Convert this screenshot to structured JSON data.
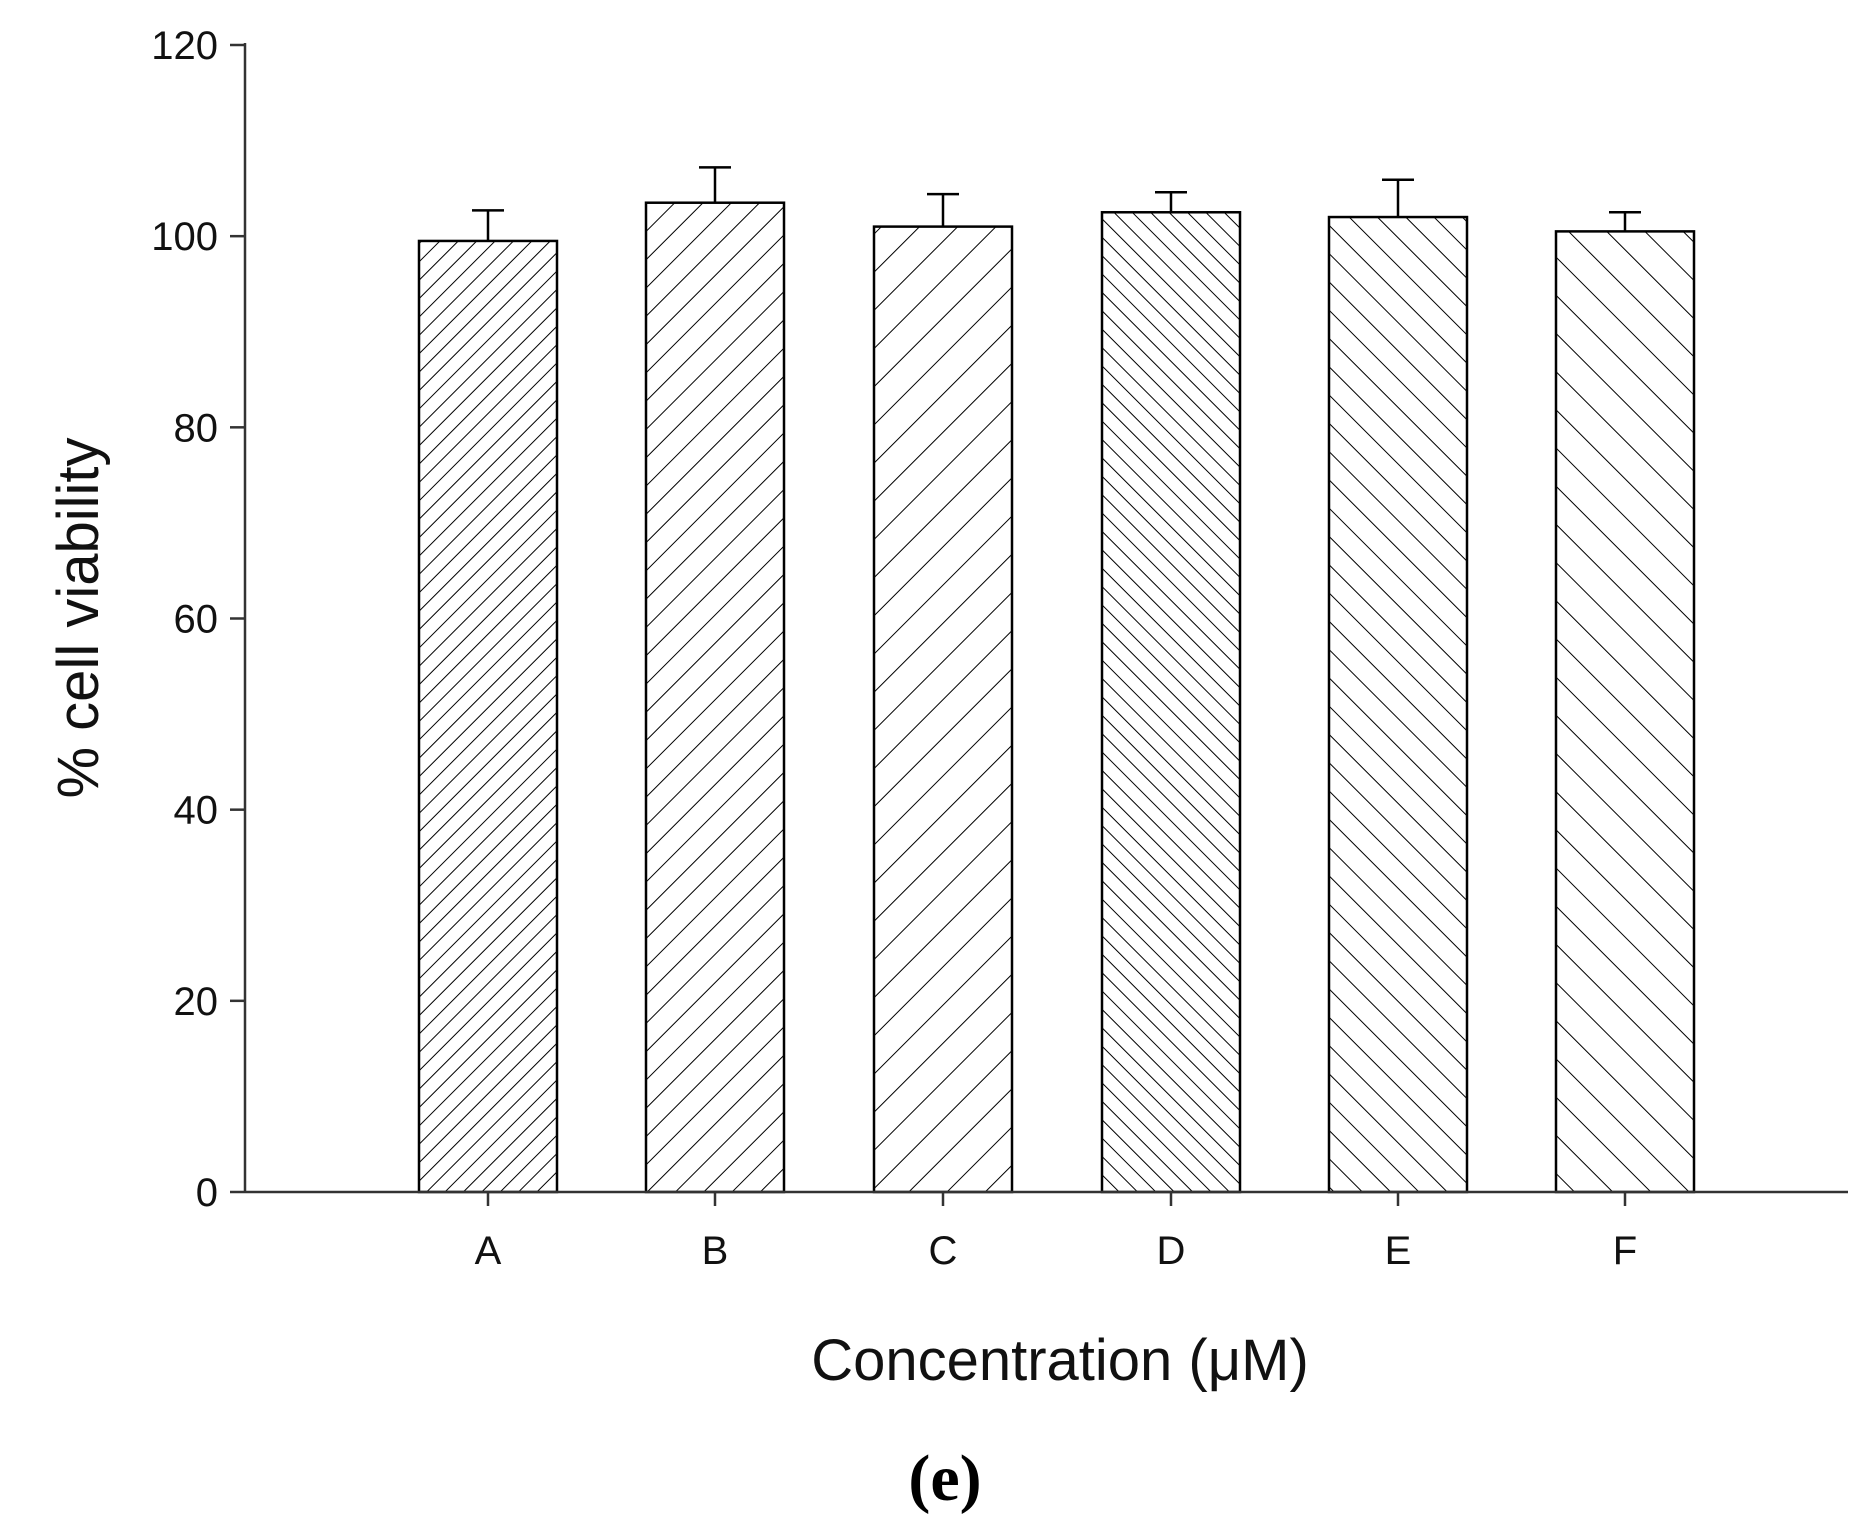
{
  "chart_data": {
    "type": "bar",
    "title": "",
    "xlabel": "Concentration (μM)",
    "ylabel": "% cell viability",
    "categories": [
      "A",
      "B",
      "C",
      "D",
      "E",
      "F"
    ],
    "values": [
      99.5,
      103.5,
      101.0,
      102.5,
      102.0,
      100.5
    ],
    "errors": [
      3.2,
      3.7,
      3.4,
      2.1,
      3.9,
      2.0
    ],
    "ylim": [
      0,
      120
    ],
    "yticks": [
      "0",
      "20",
      "40",
      "60",
      "80",
      "100",
      "120"
    ],
    "grid": false,
    "legend": "none",
    "bar_patterns": [
      {
        "direction": "forward",
        "density": "dense"
      },
      {
        "direction": "forward",
        "density": "medium"
      },
      {
        "direction": "forward",
        "density": "sparse"
      },
      {
        "direction": "backward",
        "density": "dense"
      },
      {
        "direction": "backward",
        "density": "medium"
      },
      {
        "direction": "backward",
        "density": "sparse"
      }
    ],
    "colors": {
      "bar_fill": "#ffffff",
      "stroke": "#000000",
      "axis": "#333333"
    }
  },
  "panel_label": "(e)"
}
